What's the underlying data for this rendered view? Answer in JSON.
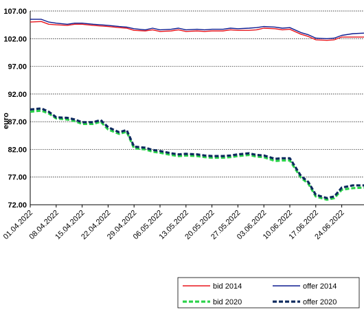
{
  "chart_data": {
    "type": "line",
    "ylabel": "euro",
    "ylim": [
      72,
      107
    ],
    "yticks": [
      "107.00",
      "102.00",
      "97.00",
      "92.00",
      "87.00",
      "82.00",
      "77.00",
      "72.00"
    ],
    "ytick_values": [
      107,
      102,
      97,
      92,
      87,
      82,
      77,
      72
    ],
    "xtick_labels": [
      "01.04.2022",
      "08.04.2022",
      "15.04.2022",
      "22.04.2022",
      "29.04.2022",
      "06.05.2022",
      "13.05.2022",
      "20.05.2022",
      "27.05.2022",
      "03.06.2022",
      "10.06.2022",
      "17.06.2022",
      "24.06.2022"
    ],
    "x_start": "2022-04-01",
    "x_end": "2022-06-30",
    "grid": "horizontal",
    "legend_position": "bottom-right",
    "x": [
      "2022-04-01",
      "2022-04-04",
      "2022-04-06",
      "2022-04-08",
      "2022-04-11",
      "2022-04-13",
      "2022-04-15",
      "2022-04-18",
      "2022-04-20",
      "2022-04-22",
      "2022-04-25",
      "2022-04-27",
      "2022-04-29",
      "2022-05-02",
      "2022-05-04",
      "2022-05-06",
      "2022-05-09",
      "2022-05-11",
      "2022-05-13",
      "2022-05-16",
      "2022-05-18",
      "2022-05-20",
      "2022-05-23",
      "2022-05-25",
      "2022-05-27",
      "2022-05-30",
      "2022-06-01",
      "2022-06-03",
      "2022-06-06",
      "2022-06-08",
      "2022-06-10",
      "2022-06-13",
      "2022-06-15",
      "2022-06-17",
      "2022-06-20",
      "2022-06-22",
      "2022-06-24",
      "2022-06-27",
      "2022-06-30"
    ],
    "series": [
      {
        "name": "bid 2014",
        "color": "#e8141b",
        "dash": "solid",
        "values": [
          105.0,
          105.1,
          104.6,
          104.5,
          104.4,
          104.6,
          104.6,
          104.4,
          104.3,
          104.2,
          104.0,
          103.9,
          103.5,
          103.4,
          103.6,
          103.3,
          103.4,
          103.6,
          103.3,
          103.4,
          103.3,
          103.4,
          103.4,
          103.6,
          103.5,
          103.5,
          103.6,
          103.9,
          103.8,
          103.6,
          103.7,
          102.8,
          102.4,
          101.8,
          101.7,
          101.8,
          102.3,
          102.3,
          102.3
        ]
      },
      {
        "name": "offer 2014",
        "color": "#0c1a8f",
        "dash": "solid",
        "values": [
          105.5,
          105.5,
          105.0,
          104.8,
          104.6,
          104.8,
          104.8,
          104.6,
          104.5,
          104.4,
          104.2,
          104.1,
          103.8,
          103.6,
          103.9,
          103.6,
          103.7,
          103.9,
          103.6,
          103.7,
          103.6,
          103.7,
          103.7,
          103.9,
          103.8,
          103.9,
          104.0,
          104.2,
          104.1,
          103.9,
          104.0,
          103.1,
          102.7,
          102.1,
          102.0,
          102.1,
          102.6,
          102.9,
          103.0
        ]
      },
      {
        "name": "bid 2020",
        "color": "#2bd24a",
        "dash": "dashed",
        "values": [
          88.8,
          89.0,
          88.5,
          87.6,
          87.4,
          87.1,
          86.6,
          86.6,
          87.0,
          85.6,
          84.8,
          85.2,
          82.2,
          82.0,
          81.6,
          81.4,
          81.0,
          80.8,
          80.9,
          80.8,
          80.6,
          80.5,
          80.5,
          80.6,
          80.8,
          81.0,
          80.7,
          80.6,
          79.9,
          80.0,
          80.0,
          76.9,
          75.8,
          73.5,
          72.9,
          73.2,
          74.7,
          75.0,
          75.1
        ]
      },
      {
        "name": "offer 2020",
        "color": "#0d2a5e",
        "dash": "dashed",
        "values": [
          89.2,
          89.4,
          88.8,
          87.8,
          87.7,
          87.4,
          86.9,
          86.9,
          87.3,
          86.0,
          85.1,
          85.5,
          82.5,
          82.3,
          81.9,
          81.7,
          81.3,
          81.1,
          81.2,
          81.1,
          80.9,
          80.8,
          80.8,
          80.9,
          81.1,
          81.3,
          81.0,
          80.9,
          80.3,
          80.4,
          80.4,
          77.2,
          76.1,
          73.8,
          73.2,
          73.5,
          75.1,
          75.5,
          75.5
        ]
      }
    ]
  }
}
